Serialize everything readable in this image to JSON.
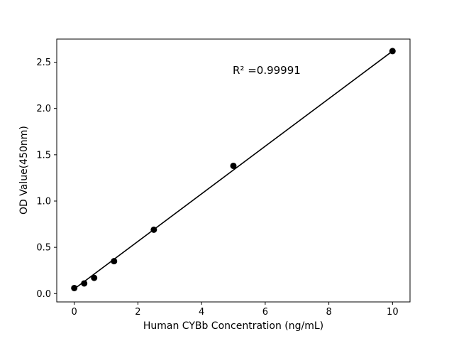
{
  "chart_data": {
    "type": "scatter",
    "x": [
      0,
      0.3125,
      0.625,
      1.25,
      2.5,
      5,
      10
    ],
    "y": [
      0.06,
      0.11,
      0.17,
      0.35,
      0.69,
      1.38,
      2.62
    ],
    "fit_line": {
      "x": [
        0,
        10
      ],
      "y": [
        0.05,
        2.62
      ]
    },
    "annotation": "R² =0.99991",
    "xlabel": "Human CYBb Concentration (ng/mL)",
    "ylabel": "OD Value(450nm)",
    "xlim": [
      -0.55,
      10.55
    ],
    "ylim": [
      -0.09,
      2.75
    ],
    "xticks": [
      0,
      2,
      4,
      6,
      8,
      10
    ],
    "xtick_labels": [
      "0",
      "2",
      "4",
      "6",
      "8",
      "10"
    ],
    "yticks": [
      0,
      0.5,
      1.0,
      1.5,
      2.0,
      2.5
    ],
    "ytick_labels": [
      "0.0",
      "0.5",
      "1.0",
      "1.5",
      "2.0",
      "2.5"
    ],
    "grid": false,
    "legend": "none",
    "marker_color": "#000000",
    "line_color": "#000000",
    "axis_color": "#000000",
    "background_color": "#ffffff"
  }
}
